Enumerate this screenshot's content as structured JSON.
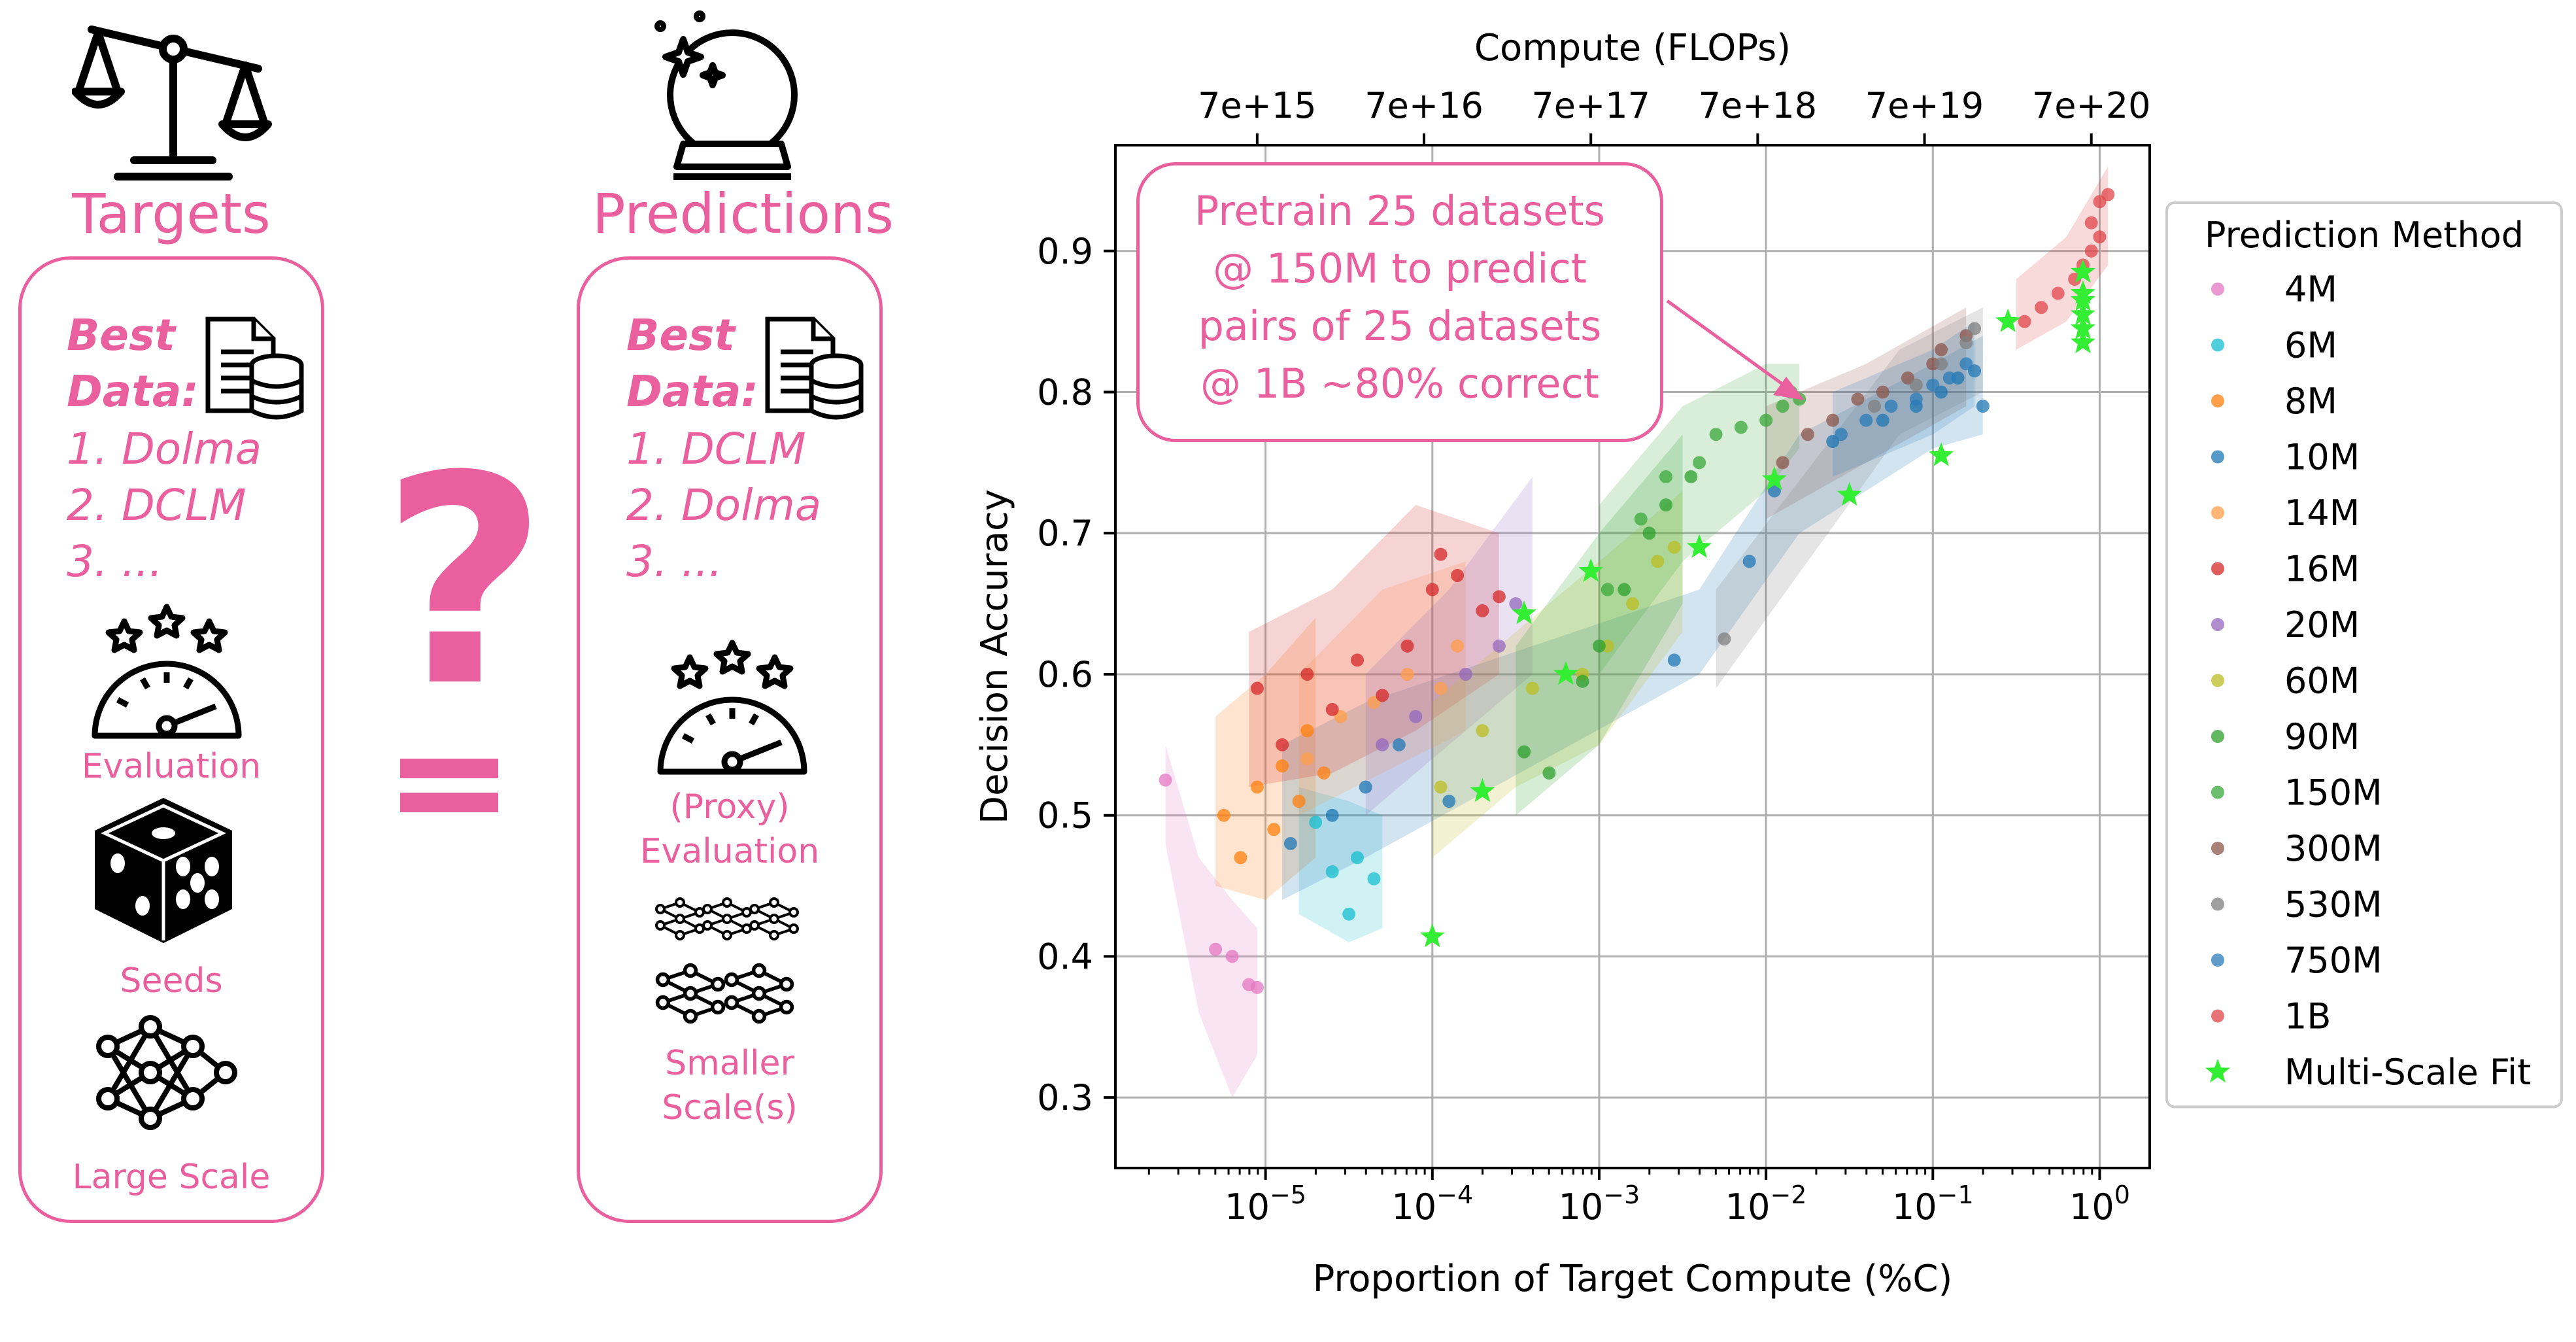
{
  "targets": {
    "title": "Targets",
    "best_label": "Best",
    "data_label": "Data:",
    "ranks": [
      "1. Dolma",
      "2. DCLM",
      "3. ..."
    ],
    "evaluation_label": "Evaluation",
    "seeds_label": "Seeds",
    "scale_label": "Large Scale"
  },
  "predictions": {
    "title": "Predictions",
    "best_label": "Best",
    "data_label": "Data:",
    "ranks": [
      "1. DCLM",
      "2. Dolma",
      "3. ..."
    ],
    "evaluation_label_1": "(Proxy)",
    "evaluation_label_2": "Evaluation",
    "scale_label_1": "Smaller",
    "scale_label_2": "Scale(s)"
  },
  "middle": {
    "question_mark": "?"
  },
  "colors": {
    "accent": "#ea5f9e",
    "star": "#33ee33"
  },
  "annotation": {
    "lines": [
      "Pretrain 25 datasets",
      "@ 150M to predict",
      "pairs of 25 datasets",
      "@ 1B ~80% correct"
    ]
  },
  "chart_data": {
    "type": "scatter",
    "xlabel": "Proportion of Target Compute (%C)",
    "ylabel": "Decision Accuracy",
    "top_xlabel": "Compute (FLOPs)",
    "xscale": "log",
    "xlim_log10": [
      -5.9,
      0.3
    ],
    "ylim": [
      0.25,
      0.975
    ],
    "x_ticks": [
      {
        "base": "10",
        "exp": "−5",
        "log": -5
      },
      {
        "base": "10",
        "exp": "−4",
        "log": -4
      },
      {
        "base": "10",
        "exp": "−3",
        "log": -3
      },
      {
        "base": "10",
        "exp": "−2",
        "log": -2
      },
      {
        "base": "10",
        "exp": "−1",
        "log": -1
      },
      {
        "base": "10",
        "exp": "0",
        "log": 0
      }
    ],
    "top_ticks": [
      {
        "label": "7e+15",
        "log": -5.05
      },
      {
        "label": "7e+16",
        "log": -4.05
      },
      {
        "label": "7e+17",
        "log": -3.05
      },
      {
        "label": "7e+18",
        "log": -2.05
      },
      {
        "label": "7e+19",
        "log": -1.05
      },
      {
        "label": "7e+20",
        "log": -0.05
      }
    ],
    "y_ticks": [
      0.3,
      0.4,
      0.5,
      0.6,
      0.7,
      0.8,
      0.9
    ],
    "grid": true,
    "legend_position": "outside-right",
    "legend_title": "Prediction Method",
    "series": [
      {
        "name": "4M",
        "color": "#e377c2",
        "points": [
          [
            -5.6,
            0.525
          ],
          [
            -5.3,
            0.405
          ],
          [
            -5.2,
            0.4
          ],
          [
            -5.1,
            0.38
          ],
          [
            -5.05,
            0.378
          ]
        ],
        "band": [
          [
            -5.6,
            0.55,
            0.48
          ],
          [
            -5.4,
            0.47,
            0.36
          ],
          [
            -5.2,
            0.44,
            0.3
          ],
          [
            -5.05,
            0.42,
            0.33
          ]
        ]
      },
      {
        "name": "6M",
        "color": "#17becf",
        "points": [
          [
            -4.7,
            0.495
          ],
          [
            -4.6,
            0.46
          ],
          [
            -4.45,
            0.47
          ],
          [
            -4.35,
            0.455
          ],
          [
            -4.5,
            0.43
          ]
        ],
        "band": [
          [
            -4.8,
            0.52,
            0.43
          ],
          [
            -4.5,
            0.51,
            0.41
          ],
          [
            -4.3,
            0.5,
            0.42
          ]
        ]
      },
      {
        "name": "8M",
        "color": "#ff7f0e",
        "points": [
          [
            -5.25,
            0.5
          ],
          [
            -5.15,
            0.47
          ],
          [
            -5.05,
            0.52
          ],
          [
            -4.95,
            0.49
          ],
          [
            -4.9,
            0.535
          ],
          [
            -4.8,
            0.51
          ],
          [
            -4.75,
            0.56
          ],
          [
            -4.65,
            0.53
          ]
        ],
        "band": [
          [
            -5.3,
            0.57,
            0.45
          ],
          [
            -5.0,
            0.6,
            0.44
          ],
          [
            -4.7,
            0.64,
            0.47
          ]
        ]
      },
      {
        "name": "10M",
        "color": "#1f77b4",
        "points": [
          [
            -4.85,
            0.48
          ],
          [
            -4.6,
            0.5
          ],
          [
            -4.4,
            0.52
          ],
          [
            -4.2,
            0.55
          ],
          [
            -3.9,
            0.51
          ],
          [
            -2.55,
            0.61
          ],
          [
            -2.1,
            0.68
          ],
          [
            -1.95,
            0.73
          ],
          [
            -1.6,
            0.765
          ],
          [
            -1.3,
            0.78
          ],
          [
            -1.1,
            0.79
          ],
          [
            -0.95,
            0.8
          ],
          [
            -0.85,
            0.81
          ],
          [
            -0.75,
            0.815
          ],
          [
            -0.7,
            0.79
          ]
        ],
        "band": [
          [
            -4.9,
            0.55,
            0.44
          ],
          [
            -4.4,
            0.58,
            0.47
          ],
          [
            -2.4,
            0.66,
            0.6
          ],
          [
            -1.8,
            0.77,
            0.7
          ],
          [
            -1.0,
            0.82,
            0.76
          ],
          [
            -0.7,
            0.84,
            0.77
          ]
        ]
      },
      {
        "name": "14M",
        "color": "#ff9f4a",
        "points": [
          [
            -4.75,
            0.54
          ],
          [
            -4.55,
            0.57
          ],
          [
            -4.35,
            0.58
          ],
          [
            -4.15,
            0.6
          ],
          [
            -3.95,
            0.59
          ],
          [
            -3.85,
            0.62
          ]
        ],
        "band": [
          [
            -4.8,
            0.6,
            0.5
          ],
          [
            -4.3,
            0.66,
            0.53
          ],
          [
            -3.8,
            0.68,
            0.56
          ]
        ]
      },
      {
        "name": "16M",
        "color": "#d62728",
        "points": [
          [
            -5.05,
            0.59
          ],
          [
            -4.9,
            0.55
          ],
          [
            -4.75,
            0.6
          ],
          [
            -4.6,
            0.575
          ],
          [
            -4.45,
            0.61
          ],
          [
            -4.3,
            0.585
          ],
          [
            -4.15,
            0.62
          ],
          [
            -4.0,
            0.66
          ],
          [
            -3.95,
            0.685
          ],
          [
            -3.85,
            0.67
          ],
          [
            -3.7,
            0.645
          ],
          [
            -3.6,
            0.655
          ]
        ],
        "band": [
          [
            -5.1,
            0.63,
            0.52
          ],
          [
            -4.6,
            0.66,
            0.53
          ],
          [
            -4.1,
            0.72,
            0.56
          ],
          [
            -3.6,
            0.7,
            0.6
          ]
        ]
      },
      {
        "name": "20M",
        "color": "#9467bd",
        "points": [
          [
            -4.3,
            0.55
          ],
          [
            -4.1,
            0.57
          ],
          [
            -3.8,
            0.6
          ],
          [
            -3.6,
            0.62
          ],
          [
            -3.5,
            0.65
          ]
        ],
        "band": [
          [
            -4.4,
            0.6,
            0.5
          ],
          [
            -3.9,
            0.66,
            0.55
          ],
          [
            -3.4,
            0.74,
            0.6
          ]
        ]
      },
      {
        "name": "60M",
        "color": "#bcbd22",
        "points": [
          [
            -3.95,
            0.52
          ],
          [
            -3.7,
            0.56
          ],
          [
            -3.4,
            0.59
          ],
          [
            -3.1,
            0.6
          ],
          [
            -2.95,
            0.62
          ],
          [
            -2.8,
            0.65
          ],
          [
            -2.65,
            0.68
          ],
          [
            -2.55,
            0.69
          ]
        ],
        "band": [
          [
            -4.0,
            0.58,
            0.47
          ],
          [
            -3.5,
            0.63,
            0.52
          ],
          [
            -3.0,
            0.68,
            0.55
          ],
          [
            -2.5,
            0.73,
            0.63
          ]
        ]
      },
      {
        "name": "90M",
        "color": "#2ca02c",
        "points": [
          [
            -3.45,
            0.545
          ],
          [
            -3.3,
            0.53
          ],
          [
            -3.1,
            0.595
          ],
          [
            -3.0,
            0.62
          ],
          [
            -2.85,
            0.66
          ],
          [
            -2.7,
            0.7
          ],
          [
            -2.6,
            0.72
          ],
          [
            -2.45,
            0.74
          ]
        ],
        "band": [
          [
            -3.5,
            0.62,
            0.5
          ],
          [
            -3.0,
            0.7,
            0.55
          ],
          [
            -2.5,
            0.77,
            0.65
          ]
        ]
      },
      {
        "name": "150M",
        "color": "#3aa83a",
        "points": [
          [
            -2.95,
            0.66
          ],
          [
            -2.75,
            0.71
          ],
          [
            -2.6,
            0.74
          ],
          [
            -2.4,
            0.75
          ],
          [
            -2.3,
            0.77
          ],
          [
            -2.15,
            0.775
          ],
          [
            -2.0,
            0.78
          ],
          [
            -1.9,
            0.79
          ],
          [
            -1.85,
            0.8
          ],
          [
            -1.8,
            0.795
          ]
        ],
        "band": [
          [
            -3.0,
            0.72,
            0.6
          ],
          [
            -2.5,
            0.79,
            0.68
          ],
          [
            -2.0,
            0.82,
            0.73
          ],
          [
            -1.8,
            0.82,
            0.76
          ]
        ]
      },
      {
        "name": "300M",
        "color": "#8c564b",
        "points": [
          [
            -1.9,
            0.75
          ],
          [
            -1.75,
            0.77
          ],
          [
            -1.6,
            0.78
          ],
          [
            -1.45,
            0.795
          ],
          [
            -1.3,
            0.8
          ],
          [
            -1.15,
            0.81
          ],
          [
            -1.0,
            0.82
          ],
          [
            -0.95,
            0.83
          ],
          [
            -0.8,
            0.84
          ]
        ],
        "band": [
          [
            -2.0,
            0.79,
            0.71
          ],
          [
            -1.4,
            0.82,
            0.75
          ],
          [
            -0.8,
            0.86,
            0.79
          ]
        ]
      },
      {
        "name": "530M",
        "color": "#7f7f7f",
        "points": [
          [
            -2.25,
            0.625
          ],
          [
            -1.35,
            0.79
          ],
          [
            -1.1,
            0.805
          ],
          [
            -0.95,
            0.82
          ],
          [
            -0.8,
            0.835
          ],
          [
            -0.75,
            0.845
          ]
        ],
        "band": [
          [
            -2.3,
            0.66,
            0.59
          ],
          [
            -1.2,
            0.83,
            0.77
          ],
          [
            -0.7,
            0.86,
            0.8
          ]
        ]
      },
      {
        "name": "750M",
        "color": "#2b7bba",
        "points": [
          [
            -1.55,
            0.77
          ],
          [
            -1.4,
            0.78
          ],
          [
            -1.25,
            0.79
          ],
          [
            -1.1,
            0.795
          ],
          [
            -1.0,
            0.805
          ],
          [
            -0.9,
            0.81
          ],
          [
            -0.8,
            0.82
          ]
        ],
        "band": [
          [
            -1.6,
            0.8,
            0.74
          ],
          [
            -1.0,
            0.83,
            0.77
          ],
          [
            -0.75,
            0.85,
            0.79
          ]
        ]
      },
      {
        "name": "1B",
        "color": "#e0454a",
        "points": [
          [
            -0.45,
            0.85
          ],
          [
            -0.35,
            0.86
          ],
          [
            -0.25,
            0.87
          ],
          [
            -0.15,
            0.88
          ],
          [
            -0.1,
            0.89
          ],
          [
            -0.05,
            0.9
          ],
          [
            0.0,
            0.91
          ],
          [
            -0.05,
            0.92
          ],
          [
            0.0,
            0.935
          ],
          [
            0.05,
            0.94
          ]
        ],
        "band": [
          [
            -0.5,
            0.88,
            0.83
          ],
          [
            -0.2,
            0.91,
            0.85
          ],
          [
            0.05,
            0.96,
            0.89
          ]
        ]
      }
    ],
    "multi_scale_fit": {
      "name": "Multi-Scale Fit",
      "points": [
        [
          -4.0,
          0.414
        ],
        [
          -3.7,
          0.517
        ],
        [
          -3.45,
          0.643
        ],
        [
          -3.2,
          0.6
        ],
        [
          -3.05,
          0.673
        ],
        [
          -2.4,
          0.69
        ],
        [
          -1.95,
          0.738
        ],
        [
          -1.5,
          0.727
        ],
        [
          -0.95,
          0.755
        ],
        [
          -0.1,
          0.885
        ],
        [
          -0.1,
          0.87
        ],
        [
          -0.1,
          0.855
        ],
        [
          -0.1,
          0.845
        ],
        [
          -0.1,
          0.835
        ],
        [
          -0.1,
          0.865
        ],
        [
          -0.55,
          0.85
        ]
      ]
    }
  }
}
